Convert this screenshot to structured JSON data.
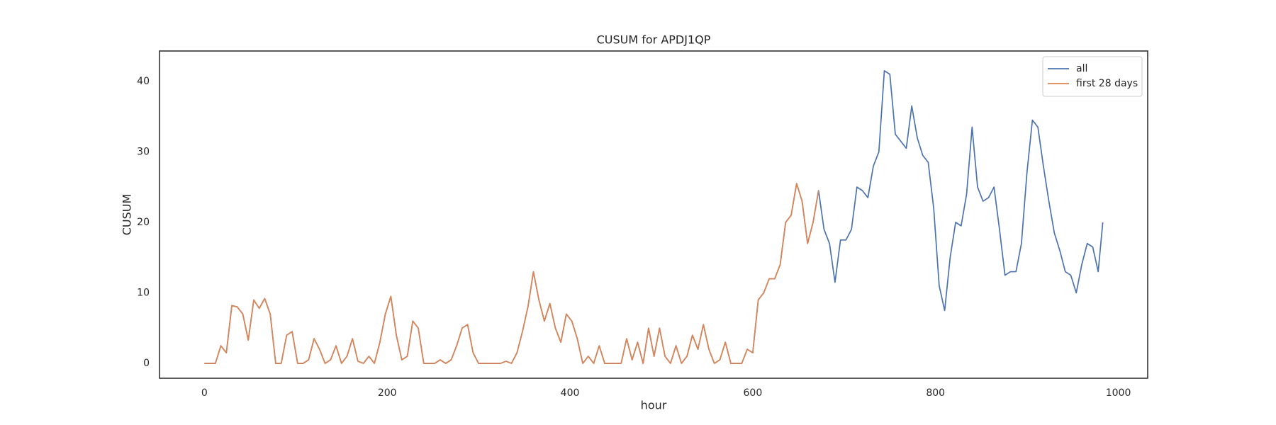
{
  "chart_data": {
    "type": "line",
    "title": "CUSUM for APDJ1QP",
    "xlabel": "hour",
    "ylabel": "CUSUM",
    "x": [
      0,
      6,
      12,
      18,
      24,
      30,
      36,
      42,
      48,
      54,
      60,
      66,
      72,
      78,
      84,
      90,
      96,
      102,
      108,
      114,
      120,
      126,
      132,
      138,
      144,
      150,
      156,
      162,
      168,
      174,
      180,
      186,
      192,
      198,
      204,
      210,
      216,
      222,
      228,
      234,
      240,
      246,
      252,
      258,
      264,
      270,
      276,
      282,
      288,
      294,
      300,
      306,
      312,
      318,
      324,
      330,
      336,
      342,
      348,
      354,
      360,
      366,
      372,
      378,
      384,
      390,
      396,
      402,
      408,
      414,
      420,
      426,
      432,
      438,
      444,
      450,
      456,
      462,
      468,
      474,
      480,
      486,
      492,
      498,
      504,
      510,
      516,
      522,
      528,
      534,
      540,
      546,
      552,
      558,
      564,
      570,
      576,
      582,
      588,
      594,
      600,
      606,
      612,
      618,
      624,
      630,
      636,
      642,
      648,
      654,
      660,
      666,
      672,
      678,
      684,
      690,
      696,
      702,
      708,
      714,
      720,
      726,
      732,
      738,
      744,
      750,
      756,
      762,
      768,
      774,
      780,
      786,
      792,
      798,
      804,
      810,
      816,
      822,
      828,
      834,
      840,
      846,
      852,
      858,
      864,
      870,
      876,
      882,
      888,
      894,
      900,
      906,
      912,
      918,
      924,
      930,
      936,
      942,
      948,
      954,
      960,
      966,
      972,
      978,
      983
    ],
    "series": [
      {
        "name": "all",
        "color": "#4c72b0",
        "values": [
          0,
          0,
          0,
          2.5,
          1.5,
          8.2,
          8,
          7,
          3.3,
          9,
          7.8,
          9.2,
          7,
          0,
          0,
          4,
          4.5,
          0,
          0,
          0.5,
          3.5,
          2,
          0,
          0.5,
          2.5,
          0,
          1,
          3.5,
          0.3,
          0,
          1,
          0,
          3,
          7,
          9.5,
          4,
          0.5,
          1,
          6,
          5,
          0,
          0,
          0,
          0.5,
          0,
          0.5,
          2.5,
          5,
          5.5,
          1.5,
          0,
          0,
          0,
          0,
          0,
          0.3,
          0,
          1.5,
          4.5,
          8,
          13,
          9,
          6,
          8.5,
          5,
          3,
          7,
          6,
          3.5,
          0,
          1,
          0,
          2.5,
          0,
          0,
          0,
          0,
          3.5,
          0.5,
          3,
          0,
          5,
          1,
          5,
          1,
          0,
          2.5,
          0,
          1,
          4,
          2,
          5.5,
          2,
          0,
          0.5,
          3,
          0,
          0,
          0,
          2,
          1.5,
          9,
          10,
          12,
          12,
          14,
          20,
          21,
          25.5,
          23,
          17,
          20,
          24.5,
          19,
          17,
          11.5,
          17.5,
          17.5,
          19,
          25,
          24.5,
          23.5,
          28,
          30,
          41.5,
          41,
          32.5,
          31.5,
          30.5,
          36.5,
          32,
          29.5,
          28.5,
          22,
          11,
          7.5,
          15,
          20,
          19.5,
          24,
          33.5,
          25,
          23,
          23.5,
          25,
          19,
          12.5,
          13,
          13,
          17,
          27,
          34.5,
          33.5,
          28,
          23,
          18.5,
          16,
          13,
          12.5,
          10,
          14,
          17,
          16.5,
          13,
          20
        ]
      },
      {
        "name": "first 28 days",
        "color": "#dd8452",
        "values": [
          0,
          0,
          0,
          2.5,
          1.5,
          8.2,
          8,
          7,
          3.3,
          9,
          7.8,
          9.2,
          7,
          0,
          0,
          4,
          4.5,
          0,
          0,
          0.5,
          3.5,
          2,
          0,
          0.5,
          2.5,
          0,
          1,
          3.5,
          0.3,
          0,
          1,
          0,
          3,
          7,
          9.5,
          4,
          0.5,
          1,
          6,
          5,
          0,
          0,
          0,
          0.5,
          0,
          0.5,
          2.5,
          5,
          5.5,
          1.5,
          0,
          0,
          0,
          0,
          0,
          0.3,
          0,
          1.5,
          4.5,
          8,
          13,
          9,
          6,
          8.5,
          5,
          3,
          7,
          6,
          3.5,
          0,
          1,
          0,
          2.5,
          0,
          0,
          0,
          0,
          3.5,
          0.5,
          3,
          0,
          5,
          1,
          5,
          1,
          0,
          2.5,
          0,
          1,
          4,
          2,
          5.5,
          2,
          0,
          0.5,
          3,
          0,
          0,
          0,
          2,
          1.5,
          9,
          10,
          12,
          12,
          14,
          20,
          21,
          25.5,
          23,
          17,
          20,
          24.5,
          null,
          null,
          null,
          null,
          null,
          null,
          null,
          null,
          null,
          null,
          null,
          null,
          null,
          null,
          null,
          null,
          null,
          null,
          null,
          null,
          null,
          null,
          null,
          null,
          null,
          null,
          null,
          null,
          null,
          null,
          null,
          null,
          null,
          null,
          null,
          null,
          null,
          null,
          null,
          null,
          null,
          null,
          null,
          null,
          null,
          null,
          null,
          null,
          null,
          null,
          null,
          null
        ]
      }
    ],
    "xlim": [
      -49.15,
      1032.15
    ],
    "xticks": [
      0,
      200,
      400,
      600,
      800,
      1000
    ],
    "ylim": [
      -2.11,
      44.3
    ],
    "yticks": [
      0,
      10,
      20,
      30,
      40
    ],
    "grid": false,
    "legend": "upper right"
  }
}
